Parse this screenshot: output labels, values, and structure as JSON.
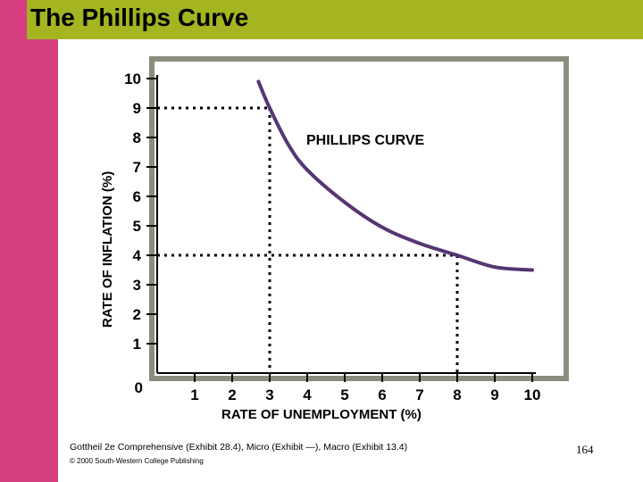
{
  "slide": {
    "title": "The Phillips Curve",
    "footer_source": "Gottheil 2e Comprehensive (Exhibit 28.4), Micro (Exhibit —), Macro (Exhibit 13.4)",
    "footer_copyright": "© 2000 South-Western College Publishing",
    "page_number": "164"
  },
  "colors": {
    "background": "#d63f80",
    "title_bar": "#a4b521",
    "panel_border": "#8d8d7f",
    "curve": "#553673"
  },
  "chart_data": {
    "type": "line",
    "title": "",
    "xlabel": "RATE OF UNEMPLOYMENT (%)",
    "ylabel": "RATE OF INFLATION (%)",
    "xlim": [
      0,
      10
    ],
    "ylim": [
      0,
      10
    ],
    "x_ticks": [
      "1",
      "2",
      "3",
      "4",
      "5",
      "6",
      "7",
      "8",
      "9",
      "10"
    ],
    "y_ticks": [
      "1",
      "2",
      "3",
      "4",
      "5",
      "6",
      "7",
      "8",
      "9",
      "10"
    ],
    "origin_label": "0",
    "grid": false,
    "series": [
      {
        "name": "PHILLIPS CURVE",
        "x": [
          2.7,
          3.0,
          3.5,
          4.0,
          5.0,
          6.0,
          7.0,
          8.0,
          9.0,
          10.0
        ],
        "y": [
          9.9,
          9.0,
          7.75,
          6.9,
          5.8,
          4.95,
          4.4,
          4.0,
          3.6,
          3.5
        ]
      }
    ],
    "reference_points": [
      {
        "x": 3,
        "y": 9
      },
      {
        "x": 8,
        "y": 4
      }
    ]
  }
}
